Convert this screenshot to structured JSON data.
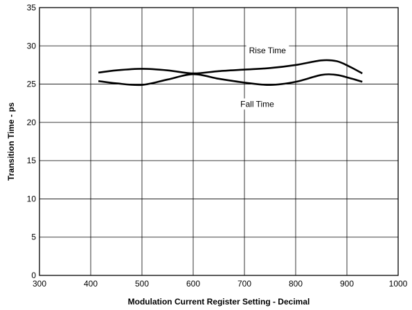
{
  "chart_data": {
    "type": "line",
    "title": "",
    "xlabel": "Modulation Current Register Setting - Decimal",
    "ylabel": "Transition Time - ps",
    "xlim": [
      300,
      1000
    ],
    "ylim": [
      0,
      35
    ],
    "xticks": [
      300,
      400,
      500,
      600,
      700,
      800,
      900,
      1000
    ],
    "yticks": [
      0,
      5,
      10,
      15,
      20,
      25,
      30,
      35
    ],
    "grid": true,
    "legend": "none",
    "series": [
      {
        "name": "Rise Time",
        "color": "#000000",
        "x": [
          415,
          450,
          500,
          550,
          600,
          650,
          700,
          750,
          800,
          850,
          880,
          905,
          930
        ],
        "y": [
          26.5,
          26.8,
          27.0,
          26.8,
          26.4,
          26.7,
          26.9,
          27.1,
          27.5,
          28.1,
          28.0,
          27.3,
          26.4
        ]
      },
      {
        "name": "Fall Time",
        "color": "#000000",
        "x": [
          415,
          450,
          500,
          550,
          600,
          650,
          700,
          750,
          800,
          850,
          880,
          905,
          930
        ],
        "y": [
          25.4,
          25.1,
          24.9,
          25.6,
          26.3,
          25.7,
          25.2,
          24.9,
          25.3,
          26.2,
          26.2,
          25.8,
          25.3
        ]
      }
    ],
    "annotations": [
      {
        "text": "Rise Time",
        "x": 745,
        "y": 29.4
      },
      {
        "text": "Fall Time",
        "x": 725,
        "y": 22.4
      }
    ]
  }
}
